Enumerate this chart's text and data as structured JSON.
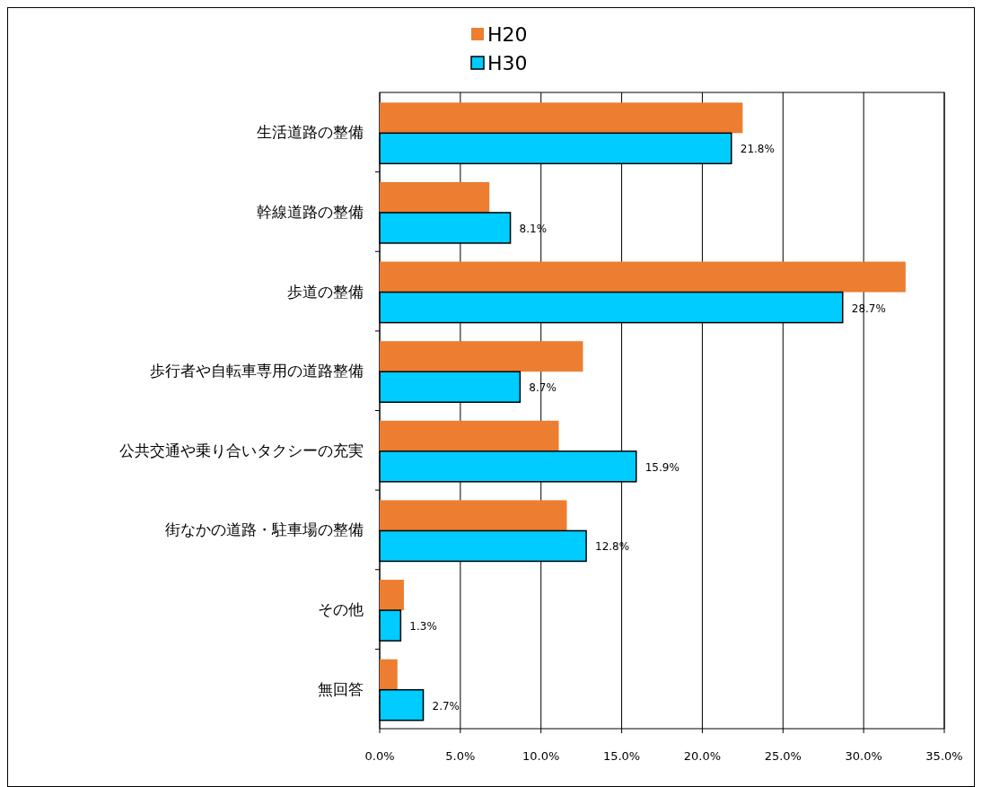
{
  "chart_data": {
    "type": "bar",
    "orientation": "horizontal",
    "categories": [
      "生活道路の整備",
      "幹線道路の整備",
      "歩道の整備",
      "歩行者や自転車専用の道路整備",
      "公共交通や乗り合いタクシーの充実",
      "街なかの道路・駐車場の整備",
      "その他",
      "無回答"
    ],
    "series": [
      {
        "name": "H20",
        "color": "#ed7d31",
        "values": [
          22.5,
          6.8,
          32.6,
          12.6,
          11.1,
          11.6,
          1.5,
          1.1
        ]
      },
      {
        "name": "H30",
        "color": "#00ccff",
        "values": [
          21.8,
          8.1,
          28.7,
          8.7,
          15.9,
          12.8,
          1.3,
          2.7
        ],
        "value_labels": [
          "21.8%",
          "8.1%",
          "28.7%",
          "8.7%",
          "15.9%",
          "12.8%",
          "1.3%",
          "2.7%"
        ]
      }
    ],
    "xlim": [
      0,
      35
    ],
    "xticks": [
      {
        "value": 0,
        "label": "0.0%"
      },
      {
        "value": 5,
        "label": "5.0%"
      },
      {
        "value": 10,
        "label": "10.0%"
      },
      {
        "value": 15,
        "label": "15.0%"
      },
      {
        "value": 20,
        "label": "20.0%"
      },
      {
        "value": 25,
        "label": "25.0%"
      },
      {
        "value": 30,
        "label": "30.0%"
      },
      {
        "value": 35,
        "label": "35.0%"
      }
    ],
    "grid": "x",
    "legend": "top"
  }
}
